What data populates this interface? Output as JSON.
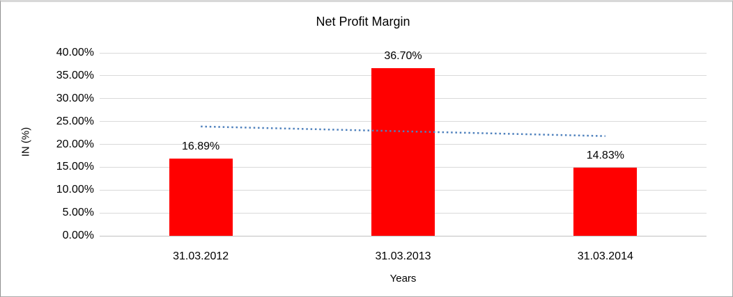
{
  "chart_data": {
    "type": "bar",
    "title": "Net Profit Margin",
    "xlabel": "Years",
    "ylabel": "IN (%)",
    "categories": [
      "31.03.2012",
      "31.03.2013",
      "31.03.2014"
    ],
    "values": [
      16.89,
      36.7,
      14.83
    ],
    "data_labels": [
      "16.89%",
      "36.70%",
      "14.83%"
    ],
    "ylim": [
      0,
      40
    ],
    "ytick_step": 5,
    "ytick_labels": [
      "0.00%",
      "5.00%",
      "10.00%",
      "15.00%",
      "20.00%",
      "25.00%",
      "30.00%",
      "35.00%",
      "40.00%"
    ],
    "grid": true,
    "legend": "none",
    "bar_color": "#ff0000",
    "gridline_color": "#d9d9d9",
    "axis_line_color": "#bfbfbf",
    "text_color": "#000000",
    "background_color": "#ffffff",
    "trendline": {
      "type": "linear",
      "style": "dotted",
      "color": "#4f81bd",
      "start_value": 23.9,
      "end_value": 21.8
    }
  }
}
